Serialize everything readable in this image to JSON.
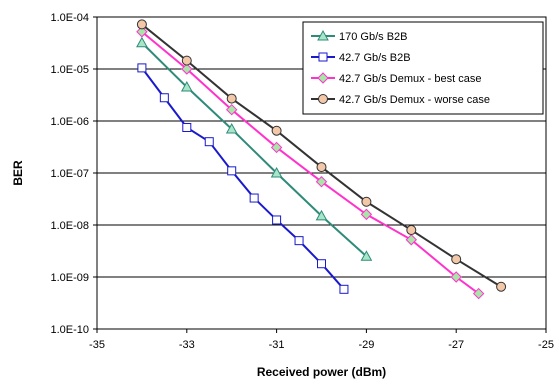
{
  "chart_data": {
    "type": "line",
    "title": "",
    "xlabel": "Received power (dBm)",
    "ylabel": "BER",
    "xlim": [
      -35,
      -25
    ],
    "ylim": [
      1e-10,
      0.0001
    ],
    "y_scale": "log",
    "grid": "horizontal",
    "legend_position": "top-right",
    "x_ticks": [
      -35,
      -33,
      -31,
      -29,
      -27,
      -25
    ],
    "x_tick_labels": [
      "-35",
      "-33",
      "-31",
      "-29",
      "-27",
      "-25"
    ],
    "y_ticks": [
      0.0001,
      1e-05,
      1e-06,
      1e-07,
      1e-08,
      1e-09,
      1e-10
    ],
    "y_tick_labels": [
      "1.0E-04",
      "1.0E-05",
      "1.0E-06",
      "1.0E-07",
      "1.0E-08",
      "1.0E-09",
      "1.0E-10"
    ],
    "series": [
      {
        "name": "170 Gb/s B2B",
        "color": "#2e8b7a",
        "marker": "triangle",
        "marker_fill": "#a8e6c8",
        "x": [
          -34,
          -33,
          -32,
          -31,
          -30,
          -29
        ],
        "y": [
          3.2e-05,
          4.5e-06,
          7e-07,
          1e-07,
          1.5e-08,
          2.5e-09
        ]
      },
      {
        "name": "42.7 Gb/s B2B",
        "color": "#1a1acc",
        "marker": "square",
        "marker_fill": "#ffffff",
        "x": [
          -34,
          -33.5,
          -33,
          -32.5,
          -32,
          -31.5,
          -31,
          -30.5,
          -30,
          -29.5
        ],
        "y": [
          1.05e-05,
          2.8e-06,
          7.5e-07,
          4e-07,
          1.1e-07,
          3.3e-08,
          1.25e-08,
          5e-09,
          1.8e-09,
          5.8e-10
        ]
      },
      {
        "name": "42.7 Gb/s Demux - best case",
        "color": "#ff33cc",
        "marker": "diamond",
        "marker_fill": "#a8e6a8",
        "x": [
          -34,
          -33,
          -32,
          -31,
          -30,
          -29,
          -28,
          -27,
          -26.5
        ],
        "y": [
          5.2e-05,
          1e-05,
          1.65e-06,
          3.1e-07,
          6.8e-08,
          1.6e-08,
          5.2e-09,
          1e-09,
          4.8e-10
        ]
      },
      {
        "name": "42.7 Gb/s Demux - worse case",
        "color": "#333333",
        "marker": "circle",
        "marker_fill": "#f2c8a8",
        "x": [
          -34,
          -33,
          -32,
          -31,
          -30,
          -29,
          -28,
          -27,
          -26
        ],
        "y": [
          7.2e-05,
          1.45e-05,
          2.7e-06,
          6.5e-07,
          1.3e-07,
          2.8e-08,
          8e-09,
          2.2e-09,
          6.5e-10
        ]
      }
    ]
  }
}
